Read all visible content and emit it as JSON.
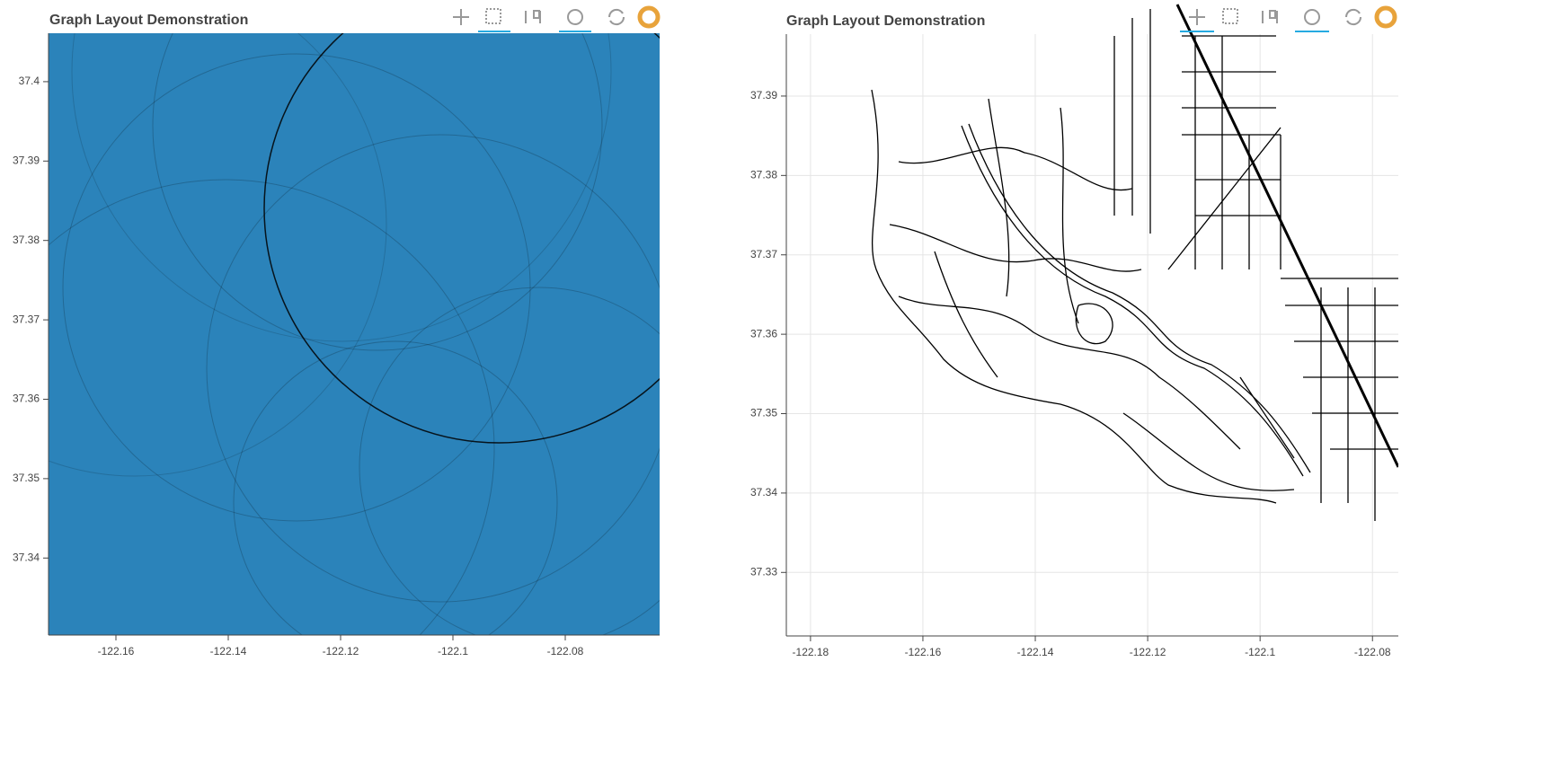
{
  "chart_data": [
    {
      "type": "graph",
      "title": "Graph Layout Demonstration",
      "color": "#2b83ba",
      "grid": false,
      "xlim": [
        -122.172,
        -122.0632
      ],
      "xticks": [
        -122.16,
        -122.14,
        -122.12,
        -122.1,
        -122.08
      ],
      "ylim": [
        37.3303,
        37.4061
      ],
      "yticks": [
        37.34,
        37.35,
        37.36,
        37.37,
        37.38,
        37.39,
        37.4
      ]
    },
    {
      "type": "graph",
      "title": "Graph Layout Demonstration",
      "color": "#000000",
      "grid": true,
      "xlim": [
        -122.1843,
        -122.0754
      ],
      "xticks": [
        -122.18,
        -122.16,
        -122.14,
        -122.12,
        -122.1,
        -122.08
      ],
      "ylim": [
        37.322,
        37.3978
      ],
      "yticks": [
        37.33,
        37.34,
        37.35,
        37.36,
        37.37,
        37.38,
        37.39
      ]
    }
  ]
}
